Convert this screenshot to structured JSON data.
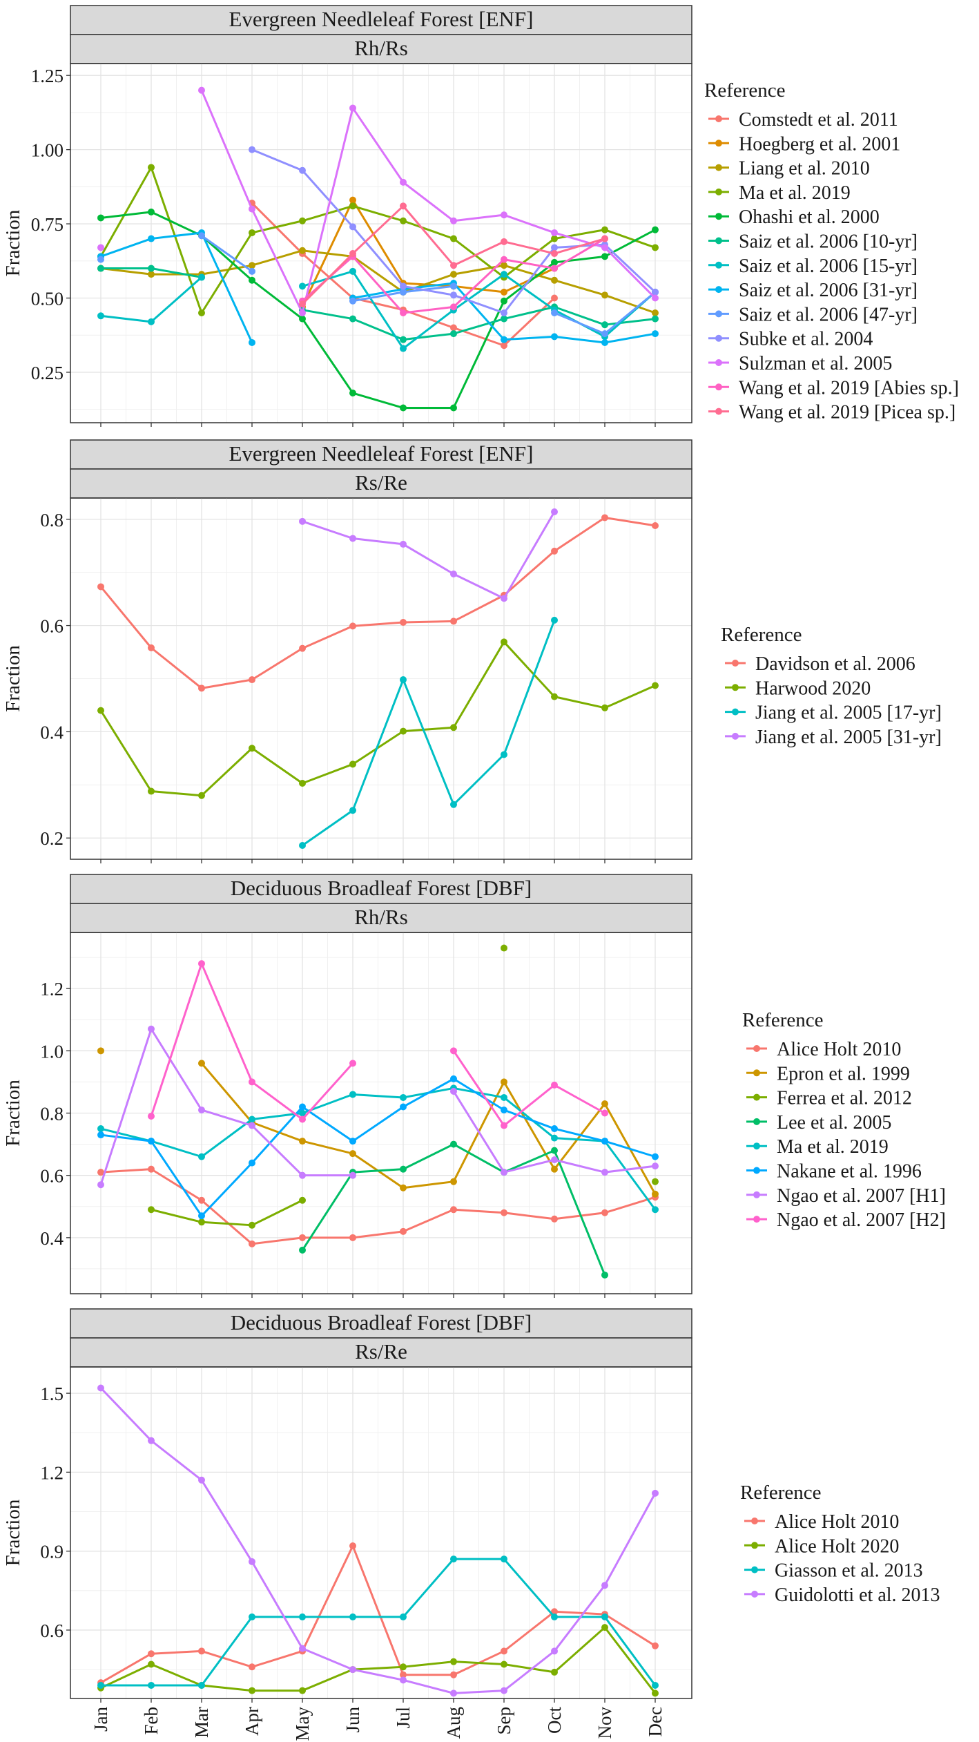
{
  "months": [
    "Jan",
    "Feb",
    "Mar",
    "Apr",
    "May",
    "Jun",
    "Jul",
    "Aug",
    "Sep",
    "Oct",
    "Nov",
    "Dec"
  ],
  "y_axis_label": "Fraction",
  "legend_title": "Reference",
  "chart_data": [
    {
      "type": "line",
      "title": "Evergreen Needleleaf Forest [ENF]",
      "subtitle": "Rh/Rs",
      "xlabel": "",
      "ylabel": "Fraction",
      "ylim": [
        0.08,
        1.29
      ],
      "yticks": [
        0.25,
        0.5,
        0.75,
        1.0,
        1.25
      ],
      "ytick_labels": [
        "0.25",
        "0.50",
        "0.75",
        "1.00",
        "1.25"
      ],
      "legend": "right",
      "series": [
        {
          "name": "Comstedt et al. 2011",
          "color": "#F8766D",
          "values": [
            null,
            null,
            null,
            0.82,
            0.65,
            0.5,
            0.46,
            0.4,
            0.34,
            0.5,
            null,
            null
          ]
        },
        {
          "name": "Hoegberg et al. 2001",
          "color": "#DE8C00",
          "values": [
            null,
            null,
            null,
            null,
            0.47,
            0.83,
            0.55,
            0.54,
            0.52,
            0.6,
            null,
            null
          ]
        },
        {
          "name": "Liang et al. 2010",
          "color": "#B79F00",
          "values": [
            0.6,
            0.58,
            0.58,
            0.61,
            0.66,
            0.64,
            0.52,
            0.58,
            0.61,
            0.56,
            0.51,
            0.45
          ]
        },
        {
          "name": "Ma et al. 2019",
          "color": "#7CAE00",
          "values": [
            0.64,
            0.94,
            0.45,
            0.72,
            0.76,
            0.81,
            0.76,
            0.7,
            0.57,
            0.7,
            0.73,
            0.67
          ]
        },
        {
          "name": "Ohashi et al. 2000",
          "color": "#00BA38",
          "values": [
            0.77,
            0.79,
            0.71,
            0.56,
            0.43,
            0.18,
            0.13,
            0.13,
            0.49,
            0.62,
            0.64,
            0.73
          ]
        },
        {
          "name": "Saiz et al. 2006 [10-yr]",
          "color": "#00C08B",
          "values": [
            0.6,
            0.6,
            0.57,
            null,
            0.46,
            0.43,
            0.36,
            0.38,
            0.43,
            0.47,
            0.41,
            0.43
          ]
        },
        {
          "name": "Saiz et al. 2006 [15-yr]",
          "color": "#00BFC4",
          "values": [
            0.44,
            0.42,
            0.57,
            null,
            0.54,
            0.59,
            0.33,
            0.46,
            0.58,
            0.46,
            0.37,
            0.52
          ]
        },
        {
          "name": "Saiz et al. 2006 [31-yr]",
          "color": "#00B4F0",
          "values": [
            0.64,
            0.7,
            0.72,
            0.35,
            null,
            0.5,
            0.53,
            0.55,
            0.36,
            0.37,
            0.35,
            0.38
          ]
        },
        {
          "name": "Saiz et al. 2006 [47-yr]",
          "color": "#619CFF",
          "values": [
            0.63,
            null,
            0.71,
            0.59,
            null,
            0.49,
            0.52,
            0.54,
            null,
            0.45,
            0.38,
            0.52
          ]
        },
        {
          "name": "Subke et al. 2004",
          "color": "#8F8FFF",
          "values": [
            null,
            null,
            null,
            1.0,
            0.93,
            0.74,
            0.54,
            0.51,
            0.45,
            0.67,
            0.68,
            0.52
          ]
        },
        {
          "name": "Sulzman et al. 2005",
          "color": "#DB72FB",
          "values": [
            0.67,
            null,
            1.2,
            0.8,
            0.45,
            1.14,
            0.89,
            0.76,
            0.78,
            0.72,
            0.67,
            0.5
          ]
        },
        {
          "name": "Wang et al. 2019 [Abies sp.]",
          "color": "#FF61C3",
          "values": [
            null,
            null,
            null,
            null,
            0.49,
            0.64,
            0.45,
            0.47,
            0.63,
            0.6,
            0.7,
            null
          ]
        },
        {
          "name": "Wang et al. 2019 [Picea sp.]",
          "color": "#FF6C91",
          "values": [
            null,
            null,
            null,
            null,
            0.48,
            0.65,
            0.81,
            0.61,
            0.69,
            0.65,
            0.7,
            null
          ]
        }
      ]
    },
    {
      "type": "line",
      "title": "Evergreen Needleleaf Forest [ENF]",
      "subtitle": "Rs/Re",
      "xlabel": "",
      "ylabel": "Fraction",
      "ylim": [
        0.16,
        0.84
      ],
      "yticks": [
        0.2,
        0.4,
        0.6,
        0.8
      ],
      "ytick_labels": [
        "0.2",
        "0.4",
        "0.6",
        "0.8"
      ],
      "legend": "right",
      "series": [
        {
          "name": "Davidson et al. 2006",
          "color": "#F8766D",
          "values": [
            0.673,
            0.558,
            0.482,
            0.498,
            0.557,
            0.599,
            0.606,
            0.608,
            0.657,
            0.74,
            0.803,
            0.788
          ]
        },
        {
          "name": "Harwood 2020",
          "color": "#7CAE00",
          "values": [
            0.44,
            0.288,
            0.28,
            0.369,
            0.303,
            0.339,
            0.401,
            0.408,
            0.569,
            0.466,
            0.445,
            0.487
          ]
        },
        {
          "name": "Jiang et al. 2005 [17-yr]",
          "color": "#00BFC4",
          "values": [
            null,
            null,
            null,
            null,
            0.186,
            0.252,
            0.498,
            0.263,
            0.357,
            0.61,
            null,
            null
          ]
        },
        {
          "name": "Jiang et al. 2005 [31-yr]",
          "color": "#C77CFF",
          "values": [
            null,
            null,
            null,
            null,
            0.796,
            0.764,
            0.753,
            0.697,
            0.651,
            0.814,
            null,
            null
          ]
        }
      ]
    },
    {
      "type": "line",
      "title": "Deciduous Broadleaf Forest [DBF]",
      "subtitle": "Rh/Rs",
      "xlabel": "",
      "ylabel": "Fraction",
      "ylim": [
        0.22,
        1.38
      ],
      "yticks": [
        0.4,
        0.6,
        0.8,
        1.0,
        1.2
      ],
      "ytick_labels": [
        "0.4",
        "0.6",
        "0.8",
        "1.0",
        "1.2"
      ],
      "legend": "right",
      "series": [
        {
          "name": "Alice Holt 2010",
          "color": "#F8766D",
          "values": [
            0.61,
            0.62,
            0.52,
            0.38,
            0.4,
            0.4,
            0.42,
            0.49,
            0.48,
            0.46,
            0.48,
            0.53
          ]
        },
        {
          "name": "Epron et al. 1999",
          "color": "#CD9600",
          "values": [
            1.0,
            null,
            0.96,
            0.77,
            0.71,
            0.67,
            0.56,
            0.58,
            0.9,
            0.62,
            0.83,
            0.54
          ]
        },
        {
          "name": "Ferrea et al. 2012",
          "color": "#7CAE00",
          "values": [
            null,
            0.49,
            0.45,
            0.44,
            0.52,
            null,
            null,
            null,
            1.33,
            null,
            null,
            0.58
          ]
        },
        {
          "name": "Lee et al. 2005",
          "color": "#00BE67",
          "values": [
            null,
            null,
            null,
            null,
            0.36,
            0.61,
            0.62,
            0.7,
            0.61,
            0.68,
            0.28,
            null
          ]
        },
        {
          "name": "Ma et al. 2019",
          "color": "#00BFC4",
          "values": [
            0.75,
            0.71,
            0.66,
            0.78,
            0.8,
            0.86,
            0.85,
            0.88,
            0.85,
            0.72,
            0.71,
            0.49
          ]
        },
        {
          "name": "Nakane et al. 1996",
          "color": "#00A9FF",
          "values": [
            0.73,
            0.71,
            0.47,
            0.64,
            0.82,
            0.71,
            0.82,
            0.91,
            0.81,
            0.75,
            0.71,
            0.66
          ]
        },
        {
          "name": "Ngao et al. 2007 [H1]",
          "color": "#C77CFF",
          "values": [
            0.57,
            1.07,
            0.81,
            0.76,
            0.6,
            0.6,
            null,
            0.87,
            0.61,
            0.65,
            0.61,
            0.63
          ]
        },
        {
          "name": "Ngao et al. 2007 [H2]",
          "color": "#FF61CC",
          "values": [
            null,
            0.79,
            1.28,
            0.9,
            0.78,
            0.96,
            null,
            1.0,
            0.76,
            0.89,
            0.8,
            null
          ]
        }
      ]
    },
    {
      "type": "line",
      "title": "Deciduous Broadleaf Forest [DBF]",
      "subtitle": "Rs/Re",
      "xlabel": "",
      "ylabel": "Fraction",
      "ylim": [
        0.34,
        1.6
      ],
      "yticks": [
        0.6,
        0.9,
        1.2,
        1.5
      ],
      "ytick_labels": [
        "0.6",
        "0.9",
        "1.2",
        "1.5"
      ],
      "legend": "right",
      "series": [
        {
          "name": "Alice Holt 2010",
          "color": "#F8766D",
          "values": [
            0.4,
            0.51,
            0.52,
            0.46,
            0.52,
            0.92,
            0.43,
            0.43,
            0.52,
            0.67,
            0.66,
            0.54
          ]
        },
        {
          "name": "Alice Holt 2020",
          "color": "#7CAE00",
          "values": [
            0.38,
            0.47,
            0.39,
            0.37,
            0.37,
            0.45,
            0.46,
            0.48,
            0.47,
            0.44,
            0.61,
            0.36
          ]
        },
        {
          "name": "Giasson et al. 2013",
          "color": "#00BFC4",
          "values": [
            0.39,
            0.39,
            0.39,
            0.65,
            0.65,
            0.65,
            0.65,
            0.87,
            0.87,
            0.65,
            0.65,
            0.39
          ]
        },
        {
          "name": "Guidolotti et al. 2013",
          "color": "#C77CFF",
          "values": [
            1.52,
            1.32,
            1.17,
            0.86,
            0.53,
            0.45,
            0.41,
            0.36,
            0.37,
            0.52,
            0.77,
            1.12
          ]
        }
      ]
    }
  ]
}
